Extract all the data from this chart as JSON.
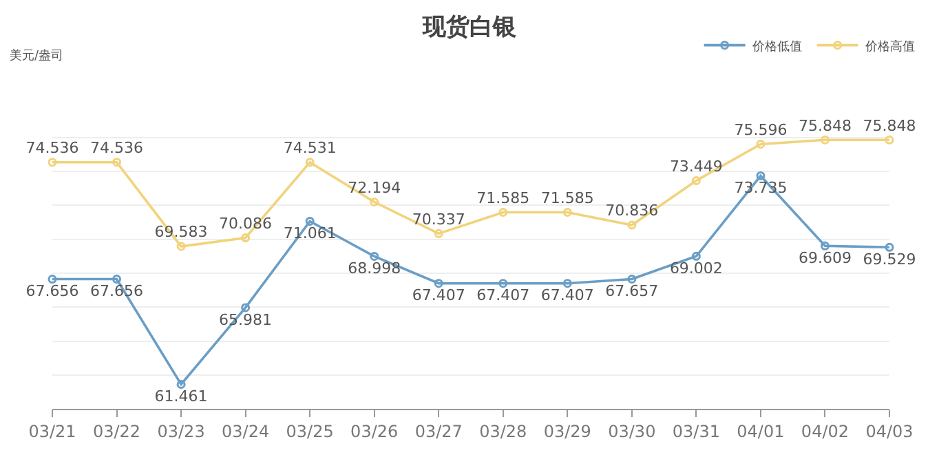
{
  "chart_data": {
    "type": "line",
    "title": "现货白银",
    "annotations": [
      "美元/盎司"
    ],
    "categories": [
      "03/21",
      "03/22",
      "03/23",
      "03/24",
      "03/25",
      "03/26",
      "03/27",
      "03/28",
      "03/29",
      "03/30",
      "03/31",
      "04/01",
      "04/02",
      "04/03"
    ],
    "series": [
      {
        "name": "价格低值",
        "color": "#6a9ec6",
        "values": [
          67.656,
          67.656,
          61.461,
          65.981,
          71.061,
          68.998,
          67.407,
          67.407,
          67.407,
          67.657,
          69.002,
          73.735,
          69.609,
          69.529
        ]
      },
      {
        "name": "价格高值",
        "color": "#f1d37c",
        "values": [
          74.536,
          74.536,
          69.583,
          70.086,
          74.531,
          72.194,
          70.337,
          71.585,
          71.585,
          70.836,
          73.449,
          75.596,
          75.848,
          75.848
        ]
      }
    ],
    "tick_labels": "x",
    "grid": "y",
    "legend": "top right",
    "marker": "circle",
    "line_style": "solid",
    "data_labels": true
  }
}
